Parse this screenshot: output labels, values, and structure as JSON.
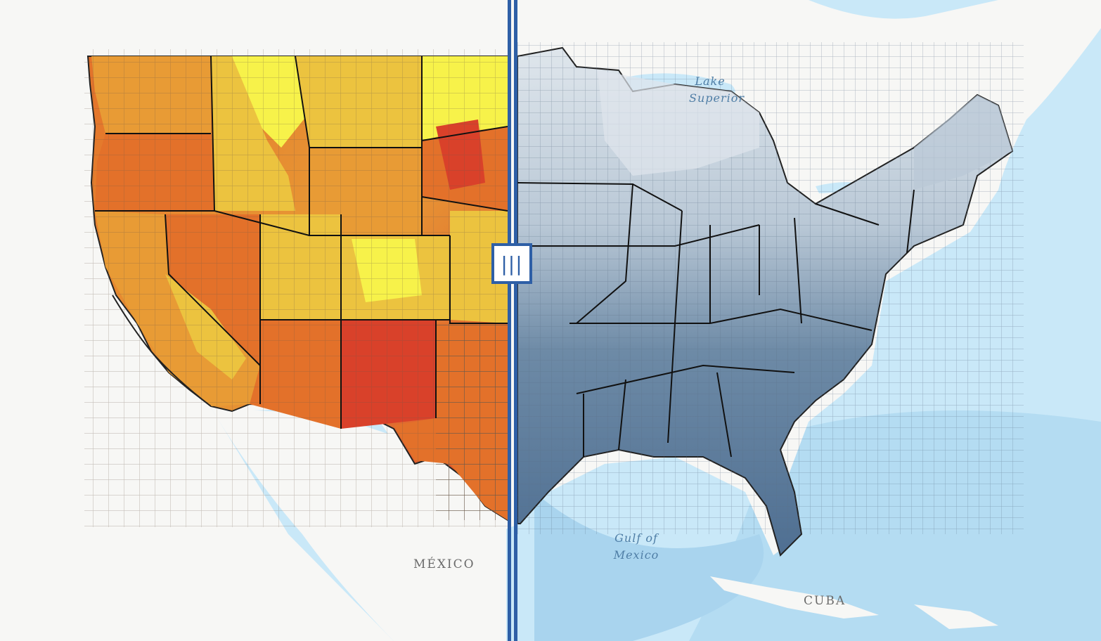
{
  "map": {
    "labels": {
      "mexico": "MÉXICO",
      "cuba": "CUBA",
      "lake_superior_line1": "Lake",
      "lake_superior_line2": "Superior",
      "gulf_line1": "Gulf of",
      "gulf_line2": "Mexico"
    },
    "swipe": {
      "handle_glyph": "|||"
    },
    "colors": {
      "ocean": "#c9e8f8",
      "land": "#f7f7f5",
      "left_layer": [
        "#f7f24a",
        "#ecc33f",
        "#e89b35",
        "#e3712a",
        "#d9412a"
      ],
      "right_layer": [
        "#dfe6ec",
        "#b9c8d6",
        "#8fa6bc",
        "#6d8aa6",
        "#4f6f92"
      ],
      "divider": "#2e5fa6"
    }
  }
}
